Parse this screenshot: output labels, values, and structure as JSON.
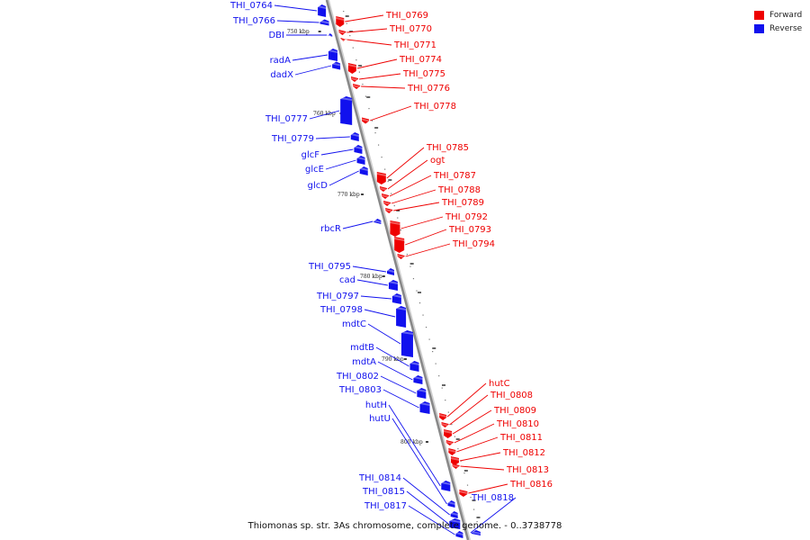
{
  "colors": {
    "forward": "#ee0000",
    "reverse": "#1111ee",
    "axis": "#888888"
  },
  "legend": [
    {
      "label": "Forward",
      "color": "#ee0000"
    },
    {
      "label": "Reverse",
      "color": "#1111ee"
    }
  ],
  "caption": "Thiomonas sp. str. 3As chromosome, complete genome. - 0..3738778",
  "ticks": [
    "750 kbp",
    "760 kbp",
    "770 kbp",
    "780 kbp",
    "790 kbp",
    "800 kbp"
  ],
  "genes": [
    {
      "name": "THI_0764",
      "strand": "reverse"
    },
    {
      "name": "THI_0766",
      "strand": "reverse"
    },
    {
      "name": "DBI",
      "strand": "reverse"
    },
    {
      "name": "radA",
      "strand": "reverse"
    },
    {
      "name": "dadX",
      "strand": "reverse"
    },
    {
      "name": "THI_0777",
      "strand": "reverse"
    },
    {
      "name": "THI_0779",
      "strand": "reverse"
    },
    {
      "name": "glcF",
      "strand": "reverse"
    },
    {
      "name": "glcE",
      "strand": "reverse"
    },
    {
      "name": "glcD",
      "strand": "reverse"
    },
    {
      "name": "rbcR",
      "strand": "reverse"
    },
    {
      "name": "THI_0795",
      "strand": "reverse"
    },
    {
      "name": "cad",
      "strand": "reverse"
    },
    {
      "name": "THI_0797",
      "strand": "reverse"
    },
    {
      "name": "THI_0798",
      "strand": "reverse"
    },
    {
      "name": "mdtC",
      "strand": "reverse"
    },
    {
      "name": "mdtB",
      "strand": "reverse"
    },
    {
      "name": "mdtA",
      "strand": "reverse"
    },
    {
      "name": "THI_0802",
      "strand": "reverse"
    },
    {
      "name": "THI_0803",
      "strand": "reverse"
    },
    {
      "name": "hutH",
      "strand": "reverse"
    },
    {
      "name": "hutU",
      "strand": "reverse"
    },
    {
      "name": "THI_0814",
      "strand": "reverse"
    },
    {
      "name": "THI_0815",
      "strand": "reverse"
    },
    {
      "name": "THI_0817",
      "strand": "reverse"
    },
    {
      "name": "THI_0769",
      "strand": "forward"
    },
    {
      "name": "THI_0770",
      "strand": "forward"
    },
    {
      "name": "THI_0771",
      "strand": "forward"
    },
    {
      "name": "THI_0774",
      "strand": "forward"
    },
    {
      "name": "THI_0775",
      "strand": "forward"
    },
    {
      "name": "THI_0776",
      "strand": "forward"
    },
    {
      "name": "THI_0778",
      "strand": "forward"
    },
    {
      "name": "THI_0785",
      "strand": "forward"
    },
    {
      "name": "ogt",
      "strand": "forward"
    },
    {
      "name": "THI_0787",
      "strand": "forward"
    },
    {
      "name": "THI_0788",
      "strand": "forward"
    },
    {
      "name": "THI_0789",
      "strand": "forward"
    },
    {
      "name": "THI_0792",
      "strand": "forward"
    },
    {
      "name": "THI_0793",
      "strand": "forward"
    },
    {
      "name": "THI_0794",
      "strand": "forward"
    },
    {
      "name": "hutC",
      "strand": "forward"
    },
    {
      "name": "THI_0808",
      "strand": "forward"
    },
    {
      "name": "THI_0809",
      "strand": "forward"
    },
    {
      "name": "THI_0810",
      "strand": "forward"
    },
    {
      "name": "THI_0811",
      "strand": "forward"
    },
    {
      "name": "THI_0812",
      "strand": "forward"
    },
    {
      "name": "THI_0813",
      "strand": "forward"
    },
    {
      "name": "THI_0816",
      "strand": "forward"
    },
    {
      "name": "THI_0818",
      "strand": "reverse"
    }
  ]
}
